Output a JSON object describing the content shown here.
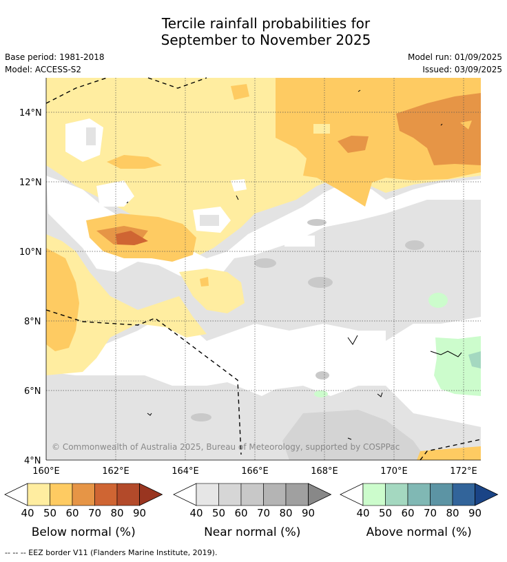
{
  "title_line1": "Tercile rainfall probabilities for",
  "title_line2": "September to November 2025",
  "base_period": "Base period: 1981-2018",
  "model": "Model: ACCESS-S2",
  "model_run": "Model run: 01/09/2025",
  "issued": "Issued: 03/09/2025",
  "copyright": "© Commonwealth of Australia 2025, Bureau of Meteorology, supported by COSPPac",
  "lat_labels": [
    "14°N",
    "12°N",
    "10°N",
    "8°N",
    "6°N",
    "4°N"
  ],
  "lon_labels": [
    "160°E",
    "162°E",
    "164°E",
    "166°E",
    "168°E",
    "170°E",
    "172°E"
  ],
  "colorbars": [
    {
      "title": "Below normal (%)",
      "ticks": [
        "40",
        "50",
        "60",
        "70",
        "80",
        "90"
      ],
      "colors": [
        "#ffeda0",
        "#fecb62",
        "#e69546",
        "#cf6533",
        "#b34a2a",
        "#993520"
      ]
    },
    {
      "title": "Near normal (%)",
      "ticks": [
        "40",
        "50",
        "60",
        "70",
        "80",
        "90"
      ],
      "colors": [
        "#e6e6e6",
        "#d6d6d6",
        "#c8c8c8",
        "#b4b4b4",
        "#a0a0a0",
        "#888888"
      ]
    },
    {
      "title": "Above normal (%)",
      "ticks": [
        "40",
        "50",
        "60",
        "70",
        "80",
        "90"
      ],
      "colors": [
        "#ccfccc",
        "#a4d8c0",
        "#80b8b4",
        "#5c94a4",
        "#32649a",
        "#1a4486"
      ]
    }
  ],
  "footer": "--  --  -- EEZ border V11 (Flanders Marine Institute, 2019)."
}
